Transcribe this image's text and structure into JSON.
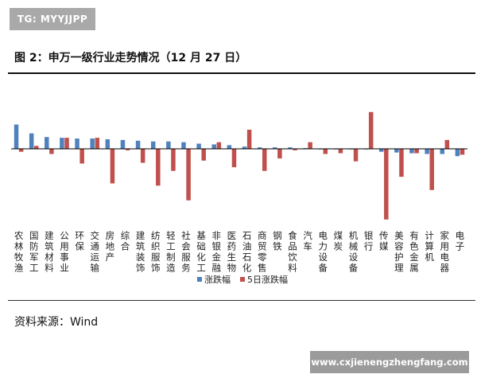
{
  "watermark_top": "TG: MYYJJPP",
  "figure_title": "图 2：申万一级行业走势情况（12 月 27 日）",
  "source_text": "资料来源：Wind",
  "watermark_bottom": "www.cxjienengzhengfang.com",
  "colors": {
    "series1": "#4f81bd",
    "series2": "#c0504d",
    "axis": "#000000"
  },
  "chart_data": {
    "type": "bar",
    "categories": [
      "农林牧渔",
      "国防军工",
      "建筑材料",
      "公用事业",
      "环保",
      "交通运输",
      "房地产",
      "综合",
      "建筑装饰",
      "纺织服饰",
      "轻工制造",
      "社会服务",
      "基础化工",
      "非银金融",
      "医药生物",
      "石油石化",
      "商贸零售",
      "钢铁",
      "食品饮料",
      "汽车",
      "电力设备",
      "煤炭",
      "机械设备",
      "银行",
      "传媒",
      "美容护理",
      "有色金属",
      "计算机",
      "家用电器",
      "电子"
    ],
    "series": [
      {
        "name": "涨跌幅",
        "values": [
          1.65,
          1.05,
          0.8,
          0.75,
          0.7,
          0.7,
          0.65,
          0.6,
          0.55,
          0.5,
          0.5,
          0.45,
          0.35,
          0.3,
          0.25,
          0.15,
          0.1,
          0.1,
          0.1,
          0.05,
          0.0,
          0.0,
          0.0,
          0.0,
          -0.2,
          -0.25,
          -0.3,
          -0.35,
          -0.35,
          -0.5
        ]
      },
      {
        "name": "5日涨跌幅",
        "values": [
          -0.2,
          0.2,
          -0.35,
          0.75,
          -1.0,
          0.75,
          -2.35,
          -0.1,
          -0.95,
          -2.5,
          -1.5,
          -3.5,
          -0.8,
          0.45,
          -1.25,
          1.3,
          -1.5,
          -0.65,
          -0.1,
          0.45,
          -0.35,
          -0.3,
          -0.85,
          2.5,
          -4.8,
          -1.9,
          -0.3,
          -2.8,
          0.6,
          -0.4
        ]
      }
    ],
    "ylim": [
      -5,
      2.2
    ],
    "legend_position": "bottom",
    "grid": false
  }
}
